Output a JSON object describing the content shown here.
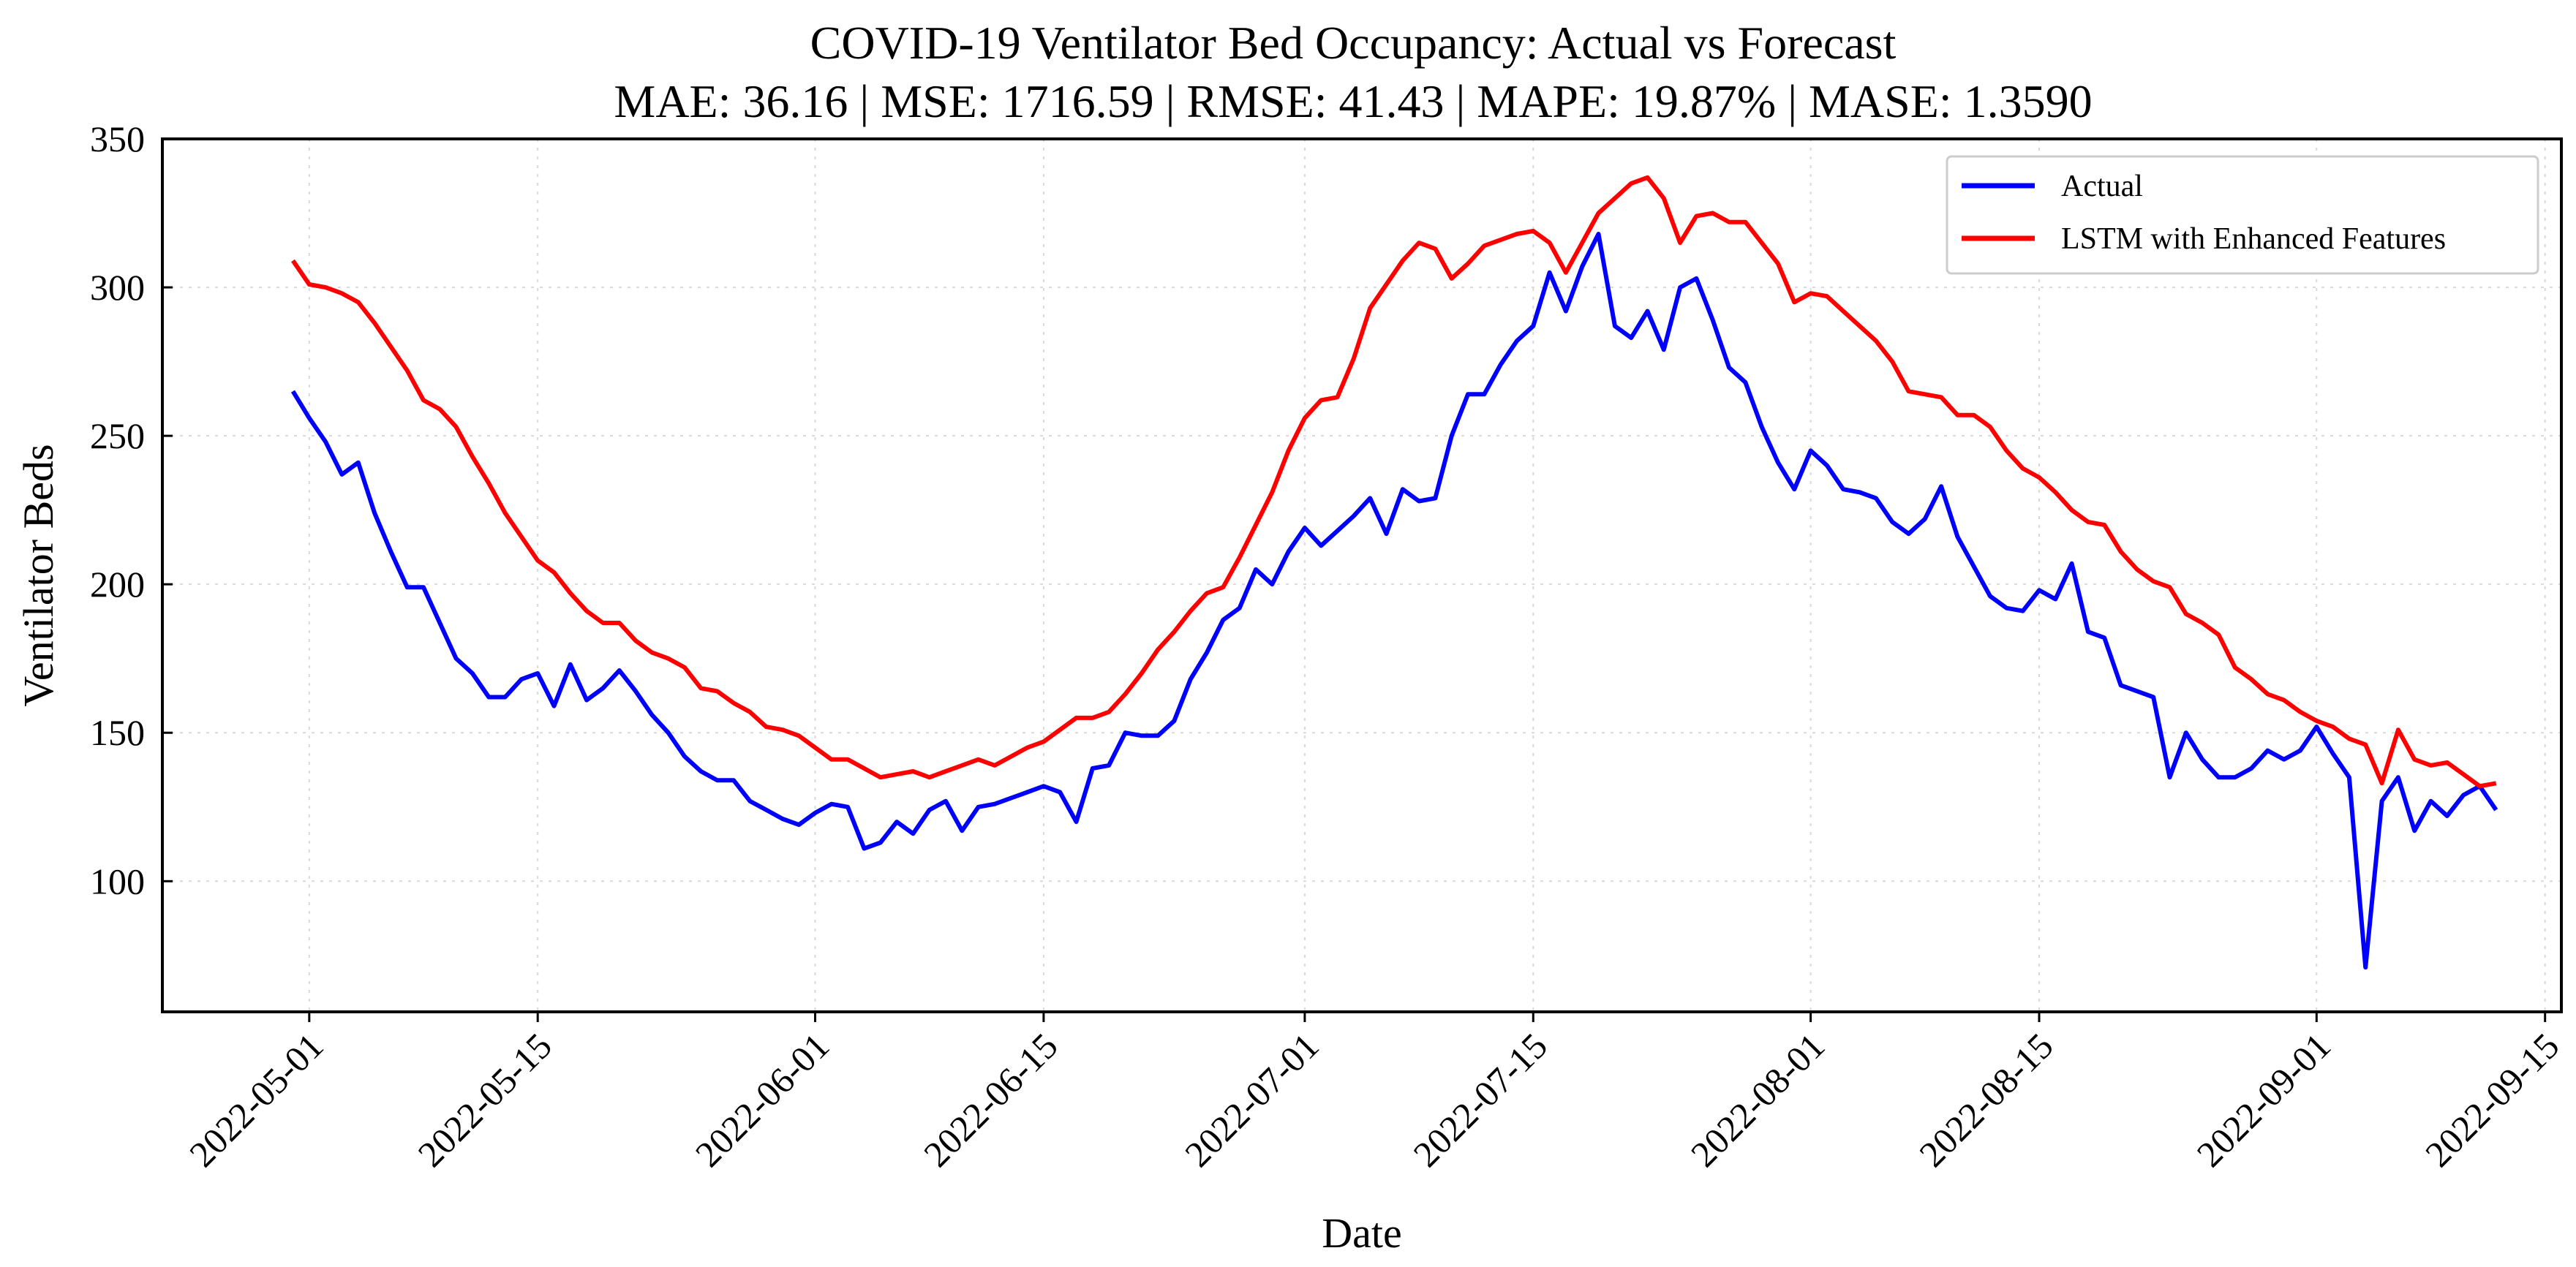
{
  "chart_data": {
    "type": "line",
    "title": "COVID-19 Ventilator Bed Occupancy: Actual vs Forecast",
    "subtitle": "MAE: 36.16 | MSE: 1716.59 | RMSE: 41.43 | MAPE: 19.87% | MASE: 1.3590",
    "xlabel": "Date",
    "ylabel": "Ventilator Beds",
    "x_start": "2022-04-30",
    "xlim": [
      "2022-04-22",
      "2022-09-16"
    ],
    "ylim": [
      56,
      350
    ],
    "x_ticks": [
      "2022-05-01",
      "2022-05-15",
      "2022-06-01",
      "2022-06-15",
      "2022-07-01",
      "2022-07-15",
      "2022-08-01",
      "2022-08-15",
      "2022-09-01",
      "2022-09-15"
    ],
    "y_ticks": [
      100,
      150,
      200,
      250,
      300,
      350
    ],
    "grid": true,
    "legend_position": "top-right",
    "series": [
      {
        "name": "Actual",
        "color": "#0000ff",
        "values": [
          265,
          256,
          248,
          237,
          241,
          224,
          211,
          199,
          199,
          187,
          175,
          170,
          162,
          162,
          168,
          170,
          159,
          173,
          161,
          165,
          171,
          164,
          156,
          150,
          142,
          137,
          134,
          134,
          127,
          124,
          121,
          119,
          123,
          126,
          125,
          111,
          113,
          120,
          116,
          124,
          127,
          117,
          125,
          126,
          128,
          130,
          132,
          130,
          120,
          138,
          139,
          150,
          149,
          149,
          154,
          168,
          177,
          188,
          192,
          205,
          200,
          211,
          219,
          213,
          218,
          223,
          229,
          217,
          232,
          228,
          229,
          250,
          264,
          264,
          274,
          282,
          287,
          305,
          292,
          307,
          318,
          287,
          283,
          292,
          279,
          300,
          303,
          289,
          273,
          268,
          253,
          241,
          232,
          245,
          240,
          232,
          231,
          229,
          221,
          217,
          222,
          233,
          216,
          206,
          196,
          192,
          191,
          198,
          195,
          207,
          184,
          182,
          166,
          164,
          162,
          135,
          150,
          141,
          135,
          135,
          138,
          144,
          141,
          144,
          152,
          143,
          135,
          71,
          127,
          135,
          117,
          127,
          122,
          129,
          132,
          124
        ]
      },
      {
        "name": "LSTM with Enhanced Features",
        "color": "#ff0000",
        "values": [
          309,
          301,
          300,
          298,
          295,
          288,
          280,
          272,
          262,
          259,
          253,
          243,
          234,
          224,
          216,
          208,
          204,
          197,
          191,
          187,
          187,
          181,
          177,
          175,
          172,
          165,
          164,
          160,
          157,
          152,
          151,
          149,
          145,
          141,
          141,
          138,
          135,
          136,
          137,
          135,
          137,
          139,
          141,
          139,
          142,
          145,
          147,
          151,
          155,
          155,
          157,
          163,
          170,
          178,
          184,
          191,
          197,
          199,
          209,
          220,
          231,
          245,
          256,
          262,
          263,
          276,
          293,
          301,
          309,
          315,
          313,
          303,
          308,
          314,
          316,
          318,
          319,
          315,
          305,
          315,
          325,
          330,
          335,
          337,
          330,
          315,
          324,
          325,
          322,
          322,
          315,
          308,
          295,
          298,
          297,
          292,
          287,
          282,
          275,
          265,
          264,
          263,
          257,
          257,
          253,
          245,
          239,
          236,
          231,
          225,
          221,
          220,
          211,
          205,
          201,
          199,
          190,
          187,
          183,
          172,
          168,
          163,
          161,
          157,
          154,
          152,
          148,
          146,
          133,
          151,
          141,
          139,
          140,
          136,
          132,
          133
        ]
      }
    ]
  }
}
